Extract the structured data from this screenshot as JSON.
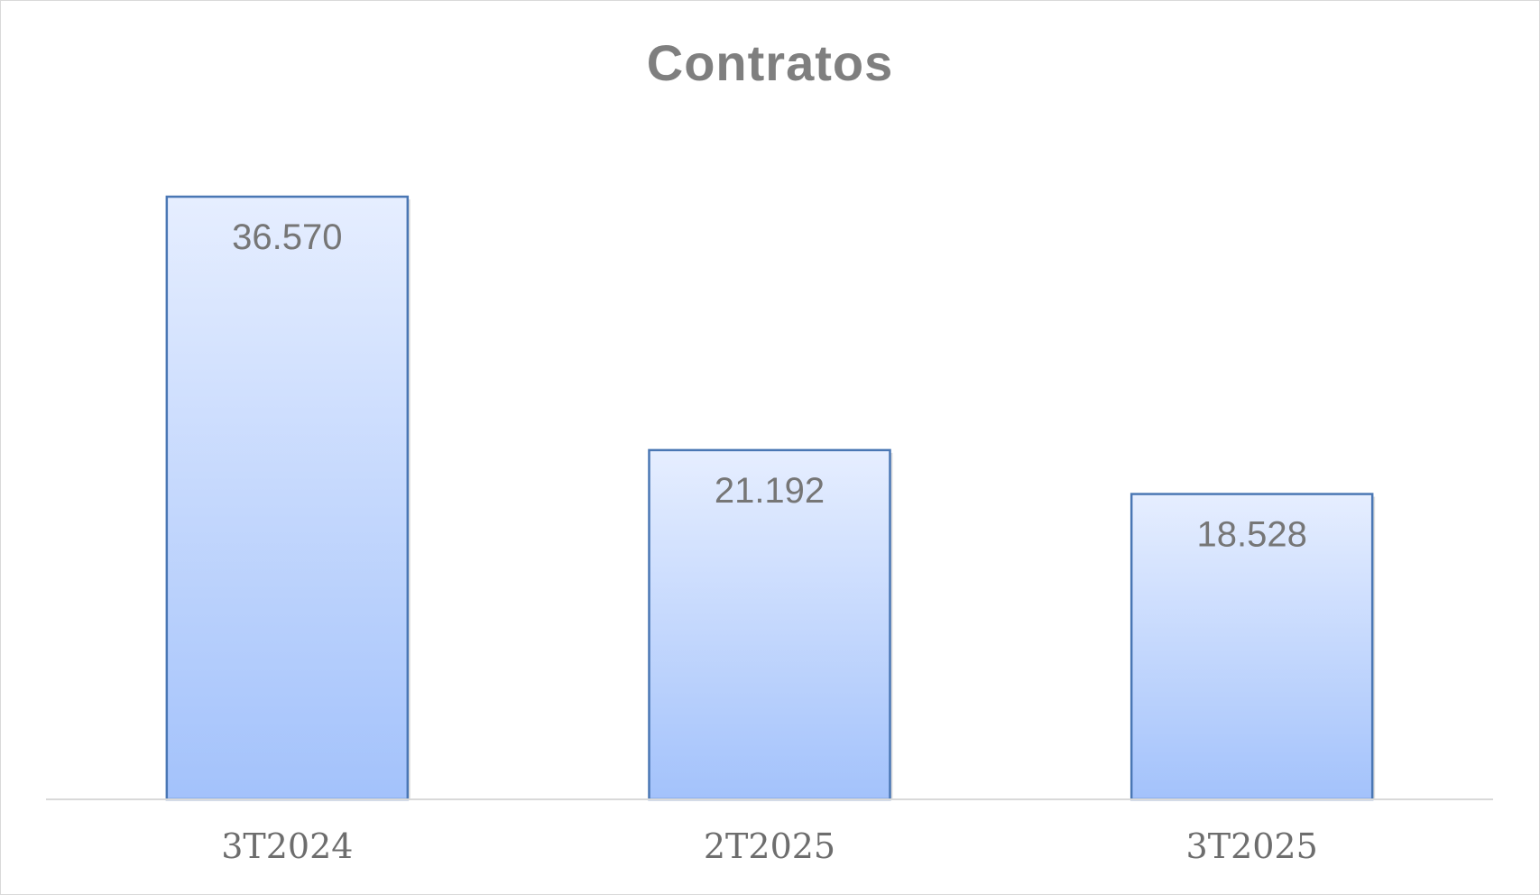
{
  "chart_data": {
    "type": "bar",
    "title": "Contratos",
    "categories": [
      "3T2024",
      "2T2025",
      "3T2025"
    ],
    "values": [
      36570,
      21192,
      18528
    ],
    "value_labels": [
      "36.570",
      "21.192",
      "18.528"
    ],
    "xlabel": "",
    "ylabel": "",
    "ylim": [
      0,
      40000
    ],
    "grid": false,
    "legend": "none",
    "colors": {
      "bar_top": "#e6eeff",
      "bar_bottom": "#a3c2fb",
      "bar_border": "#4a77b4",
      "text": "#7f7f7f",
      "axis": "#d9d9d9"
    }
  }
}
